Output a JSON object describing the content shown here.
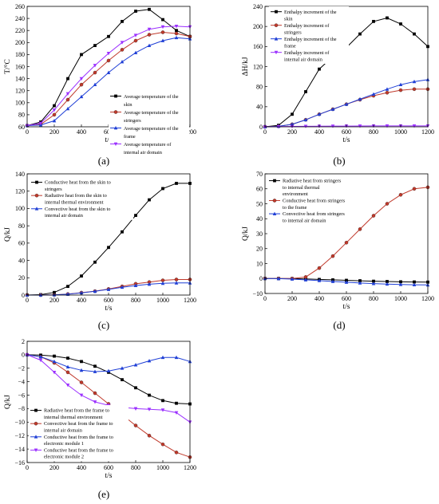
{
  "panels": [
    {
      "label": "(a)"
    },
    {
      "label": "(b)"
    },
    {
      "label": "(c)"
    },
    {
      "label": "(d)"
    },
    {
      "label": "(e)"
    }
  ],
  "chart_data": [
    {
      "type": "line",
      "panel": "(a)",
      "xlabel": "t/s",
      "ylabel": "T/°C",
      "xlim": [
        0,
        1200
      ],
      "ylim": [
        60,
        260
      ],
      "xticks": [
        0,
        200,
        400,
        600,
        800,
        1000,
        1200
      ],
      "yticks": [
        60,
        80,
        100,
        120,
        140,
        160,
        180,
        200,
        220,
        240,
        260
      ],
      "legend_position": "bottom-right",
      "x": [
        0,
        100,
        200,
        300,
        400,
        500,
        600,
        700,
        800,
        900,
        1000,
        1100,
        1200
      ],
      "series": [
        {
          "name": "Average temperature of the skin",
          "color": "#000000",
          "marker": "square",
          "values": [
            62,
            68,
            95,
            140,
            180,
            195,
            210,
            235,
            252,
            255,
            238,
            220,
            210
          ]
        },
        {
          "name": "Average temperature of the stringers",
          "color": "#c0392b",
          "marker": "circle",
          "values": [
            62,
            64,
            80,
            105,
            130,
            150,
            170,
            188,
            203,
            213,
            217,
            215,
            210
          ]
        },
        {
          "name": "Average temperature of the frame",
          "color": "#1f3fd6",
          "marker": "triangle",
          "values": [
            62,
            63,
            70,
            90,
            110,
            130,
            150,
            168,
            183,
            195,
            203,
            208,
            206
          ]
        },
        {
          "name": "Average temperature of internal air domain",
          "color": "#9b30ff",
          "marker": "tri-down",
          "values": [
            62,
            66,
            88,
            115,
            140,
            162,
            182,
            200,
            212,
            222,
            226,
            227,
            226
          ]
        }
      ]
    },
    {
      "type": "line",
      "panel": "(b)",
      "xlabel": "t/s",
      "ylabel": "ΔH/kJ",
      "xlim": [
        0,
        1200
      ],
      "ylim": [
        0,
        240
      ],
      "xticks": [
        0,
        200,
        400,
        600,
        800,
        1000,
        1200
      ],
      "yticks": [
        0,
        40,
        80,
        120,
        160,
        200,
        240
      ],
      "legend_position": "top-left",
      "x": [
        0,
        100,
        200,
        300,
        400,
        500,
        600,
        700,
        800,
        900,
        1000,
        1100,
        1200
      ],
      "series": [
        {
          "name": "Enthalpy increment of the skin",
          "color": "#000000",
          "marker": "square",
          "values": [
            0,
            3,
            25,
            70,
            115,
            140,
            158,
            185,
            210,
            217,
            205,
            185,
            160
          ]
        },
        {
          "name": "Enthalpy increment of stringers",
          "color": "#c0392b",
          "marker": "circle",
          "values": [
            0,
            1,
            5,
            14,
            25,
            35,
            45,
            54,
            62,
            68,
            73,
            75,
            75
          ]
        },
        {
          "name": "Enthalpy increment of the frame",
          "color": "#1f3fd6",
          "marker": "triangle",
          "values": [
            0,
            1,
            5,
            14,
            25,
            35,
            45,
            55,
            65,
            75,
            84,
            90,
            94
          ]
        },
        {
          "name": "Enthalpy increment of internal air domain",
          "color": "#9b30ff",
          "marker": "tri-down",
          "values": [
            0,
            0.3,
            0.8,
            1,
            1.2,
            1.4,
            1.5,
            1.6,
            1.7,
            1.8,
            1.8,
            1.8,
            1.8
          ]
        }
      ]
    },
    {
      "type": "line",
      "panel": "(c)",
      "xlabel": "t/s",
      "ylabel": "Q/kJ",
      "xlim": [
        0,
        1200
      ],
      "ylim": [
        0,
        140
      ],
      "xticks": [
        0,
        200,
        400,
        600,
        800,
        1000,
        1200
      ],
      "yticks": [
        0,
        20,
        40,
        60,
        80,
        100,
        120,
        140
      ],
      "legend_position": "top-left",
      "x": [
        0,
        100,
        200,
        300,
        400,
        500,
        600,
        700,
        800,
        900,
        1000,
        1100,
        1200
      ],
      "series": [
        {
          "name": "Conductive heat from the skin to stringers",
          "color": "#000000",
          "marker": "square",
          "values": [
            0,
            0.5,
            3,
            10,
            22,
            38,
            55,
            73,
            92,
            110,
            123,
            129,
            129
          ]
        },
        {
          "name": "Radiative heat from the skin to internal thermal environment",
          "color": "#c0392b",
          "marker": "circle",
          "values": [
            0,
            0,
            0.3,
            1.2,
            2.8,
            4.5,
            7,
            10,
            13,
            15,
            17,
            18,
            18
          ]
        },
        {
          "name": "Convective heat from the skin to internal air domain",
          "color": "#1f3fd6",
          "marker": "triangle",
          "values": [
            0,
            0,
            0.3,
            1,
            2.5,
            4.3,
            6.5,
            9,
            11,
            12.5,
            13.5,
            14,
            14
          ]
        }
      ]
    },
    {
      "type": "line",
      "panel": "(d)",
      "xlabel": "t/s",
      "ylabel": "Q/kJ",
      "xlim": [
        0,
        1200
      ],
      "ylim": [
        -10,
        70
      ],
      "xticks": [
        0,
        200,
        400,
        600,
        800,
        1000,
        1200
      ],
      "yticks": [
        -10,
        0,
        10,
        20,
        30,
        40,
        50,
        60,
        70
      ],
      "legend_position": "top-left",
      "x": [
        0,
        100,
        200,
        300,
        400,
        500,
        600,
        700,
        800,
        900,
        1000,
        1100,
        1200
      ],
      "series": [
        {
          "name": "Radiative heat from stringers to internal thermal environment",
          "color": "#000000",
          "marker": "square",
          "values": [
            0,
            0,
            -0.1,
            -0.3,
            -0.6,
            -0.9,
            -1.2,
            -1.5,
            -1.8,
            -2,
            -2.2,
            -2.3,
            -2.4
          ]
        },
        {
          "name": "Conductive heat from stringers to the frame",
          "color": "#c0392b",
          "marker": "circle",
          "values": [
            0,
            0,
            0,
            1,
            7,
            15,
            24,
            33,
            42,
            50,
            56,
            60,
            61
          ]
        },
        {
          "name": "Convective heat from stringers to internal air domain",
          "color": "#1f3fd6",
          "marker": "triangle",
          "values": [
            0,
            -0.1,
            -0.4,
            -0.9,
            -1.4,
            -2,
            -2.5,
            -3,
            -3.4,
            -3.7,
            -4,
            -4.2,
            -4.3
          ]
        }
      ]
    },
    {
      "type": "line",
      "panel": "(e)",
      "xlabel": "t/s",
      "ylabel": "Q/kJ",
      "xlim": [
        0,
        1200
      ],
      "ylim": [
        -16,
        2
      ],
      "xticks": [
        0,
        200,
        400,
        600,
        800,
        1000,
        1200
      ],
      "yticks": [
        -16,
        -14,
        -12,
        -10,
        -8,
        -6,
        -4,
        -2,
        0,
        2
      ],
      "legend_position": "bottom-left",
      "x": [
        0,
        100,
        200,
        300,
        400,
        500,
        600,
        700,
        800,
        900,
        1000,
        1100,
        1200
      ],
      "series": [
        {
          "name": "Radiative heat from the frame to internal thermal environment",
          "color": "#000000",
          "marker": "square",
          "values": [
            0,
            -0.05,
            -0.2,
            -0.5,
            -1,
            -1.7,
            -2.6,
            -3.7,
            -4.9,
            -6,
            -6.8,
            -7.2,
            -7.3
          ]
        },
        {
          "name": "Convective heat from the frame to internal air domain",
          "color": "#c0392b",
          "marker": "circle",
          "values": [
            0,
            -0.3,
            -1.2,
            -2.6,
            -4.1,
            -5.7,
            -7.3,
            -8.9,
            -10.5,
            -12,
            -13.3,
            -14.5,
            -15.2
          ]
        },
        {
          "name": "Conductive heat from the frame to electronic module 1",
          "color": "#1f3fd6",
          "marker": "triangle",
          "values": [
            0,
            -0.3,
            -1,
            -1.8,
            -2.3,
            -2.5,
            -2.4,
            -2,
            -1.5,
            -0.9,
            -0.4,
            -0.4,
            -1
          ]
        },
        {
          "name": "Conductive heat from the frame to electronic module 2",
          "color": "#9b30ff",
          "marker": "tri-down",
          "values": [
            0,
            -0.8,
            -2.6,
            -4.5,
            -6,
            -7,
            -7.5,
            -7.8,
            -8,
            -8.1,
            -8.2,
            -8.6,
            -10
          ]
        }
      ]
    }
  ]
}
